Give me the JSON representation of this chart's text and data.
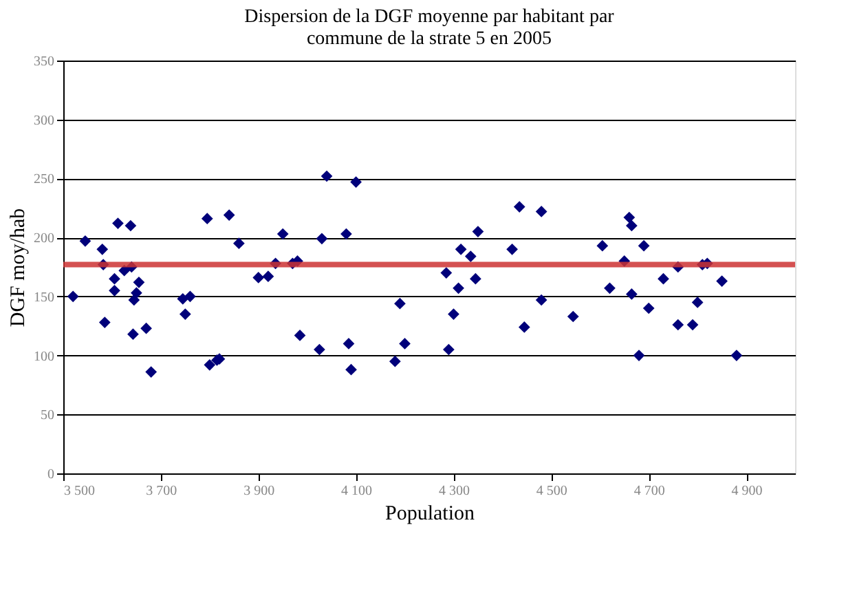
{
  "chart_data": {
    "type": "scatter",
    "title": [
      "Dispersion de la DGF moyenne par habitant par",
      "commune de la strate 5 en 2005"
    ],
    "xlabel": "Population",
    "ylabel": "DGF moy/hab",
    "xlim": [
      3500,
      5000
    ],
    "xticks": [
      {
        "value": 3500,
        "label": "3 500"
      },
      {
        "value": 3700,
        "label": "3 700"
      },
      {
        "value": 3900,
        "label": "3 900"
      },
      {
        "value": 4100,
        "label": "4 100"
      },
      {
        "value": 4300,
        "label": "4 300"
      },
      {
        "value": 4500,
        "label": "4 500"
      },
      {
        "value": 4700,
        "label": "4 700"
      },
      {
        "value": 4900,
        "label": "4 900"
      }
    ],
    "ylim": [
      0,
      350
    ],
    "yticks": [
      0,
      50,
      100,
      150,
      200,
      250,
      300,
      350
    ],
    "grid": "y",
    "marker": "diamond",
    "legend": false,
    "x": [
      3520,
      3545,
      3580,
      3582,
      3585,
      3605,
      3605,
      3612,
      3625,
      3638,
      3640,
      3643,
      3645,
      3650,
      3655,
      3670,
      3680,
      3745,
      3750,
      3760,
      3795,
      3800,
      3815,
      3820,
      3840,
      3860,
      3900,
      3920,
      3935,
      3950,
      3970,
      3980,
      3985,
      4025,
      4030,
      4040,
      4080,
      4085,
      4090,
      4100,
      4180,
      4190,
      4200,
      4285,
      4290,
      4300,
      4310,
      4315,
      4335,
      4345,
      4350,
      4420,
      4435,
      4445,
      4480,
      4480,
      4545,
      4605,
      4620,
      4650,
      4660,
      4665,
      4665,
      4680,
      4690,
      4700,
      4730,
      4760,
      4760,
      4790,
      4800,
      4810,
      4820,
      4850,
      4880
    ],
    "series": [
      {
        "color": "#00007a",
        "values": [
          150,
          197,
          190,
          177,
          128,
          165,
          155,
          212,
          172,
          210,
          175,
          118,
          147,
          153,
          162,
          123,
          86,
          148,
          135,
          150,
          216,
          92,
          96,
          97,
          219,
          195,
          166,
          167,
          178,
          203,
          178,
          180,
          117,
          105,
          199,
          252,
          203,
          110,
          88,
          247,
          95,
          144,
          110,
          170,
          105,
          135,
          157,
          190,
          184,
          165,
          205,
          190,
          226,
          124,
          222,
          147,
          133,
          193,
          157,
          180,
          217,
          210,
          152,
          100,
          193,
          140,
          165,
          175,
          126,
          126,
          145,
          177,
          178,
          163,
          100
        ]
      }
    ],
    "ref_lines": [
      {
        "axis": "y",
        "value": 177,
        "color": "#cc3333"
      }
    ]
  }
}
